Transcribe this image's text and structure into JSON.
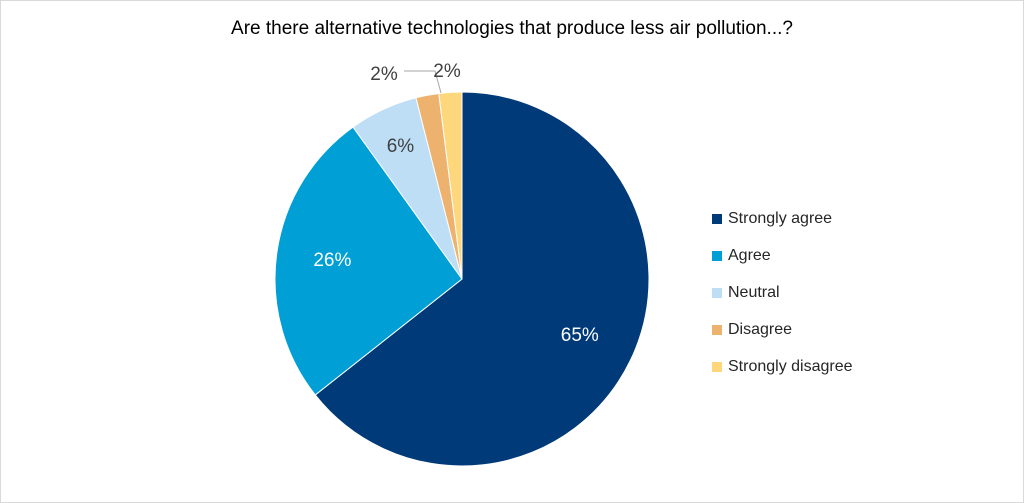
{
  "chart_data": {
    "type": "pie",
    "title": "Are there alternative technologies that produce less air pollution...?",
    "slices": [
      {
        "label": "Strongly agree",
        "value": 65,
        "display": "65%",
        "color": "#003a78"
      },
      {
        "label": "Agree",
        "value": 26,
        "display": "26%",
        "color": "#009fd6"
      },
      {
        "label": "Neutral",
        "value": 6,
        "display": "6%",
        "color": "#bddef5"
      },
      {
        "label": "Disagree",
        "value": 2,
        "display": "2%",
        "color": "#ecb26e"
      },
      {
        "label": "Strongly disagree",
        "value": 2,
        "display": "2%",
        "color": "#fed77c"
      }
    ],
    "legend_position": "right"
  }
}
